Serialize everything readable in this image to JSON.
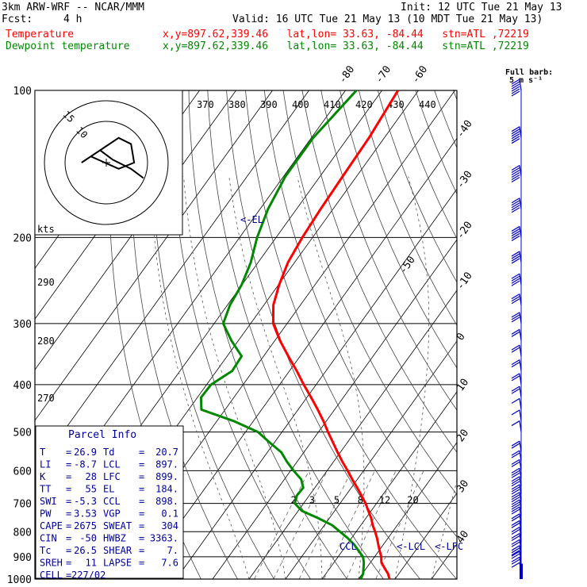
{
  "header": {
    "model": "3km ARW-WRF -- NCAR/MMM",
    "init": "Init: 12 UTC Tue 21 May 13",
    "fcst_label": "Fcst:",
    "fcst_hours": "4 h",
    "valid": "Valid: 16 UTC Tue 21 May 13 (10 MDT Tue 21 May 13)",
    "temp_legend": "Temperature",
    "dewp_legend": "Dewpoint temperature",
    "temp_info": "x,y=897.62,339.46   lat,lon= 33.63, -84.44   stn=ATL ,72219",
    "dewp_info": "x,y=897.62,339.46   lat,lon= 33.63, -84.44   stn=ATL ,72219"
  },
  "colors": {
    "temperature": "#ff0000",
    "dewpoint": "#008800",
    "parcel": "#000099",
    "wind": "#0000cc",
    "grid": "#000000",
    "bg": "#ffffff"
  },
  "chart_data": {
    "type": "line",
    "subtype": "skew-t log-p",
    "yaxis_label_ticks": [
      "100",
      "200",
      "300",
      "400",
      "500",
      "600",
      "700",
      "800",
      "900",
      "1000"
    ],
    "y_ticks": [
      100,
      200,
      300,
      400,
      500,
      600,
      700,
      800,
      900,
      1000
    ],
    "isotherm_labels": [
      "-80",
      "-70",
      "-60",
      "-50",
      "-40",
      "-30",
      "-20",
      "-10",
      "0",
      "10",
      "20",
      "30",
      "40"
    ],
    "isotherm_values": [
      -80,
      -70,
      -60,
      -50,
      -40,
      -30,
      -20,
      -10,
      0,
      10,
      20,
      30,
      40
    ],
    "theta_labels": [
      "370",
      "380",
      "390",
      "400",
      "410",
      "420",
      "430",
      "440"
    ],
    "theta_label_values": [
      370,
      380,
      390,
      400,
      410,
      420,
      430,
      440
    ],
    "dry_adiabat_labels": [
      "290",
      "280",
      "270"
    ],
    "dry_adiabat_values": [
      290,
      280,
      270
    ],
    "mixing_ratio_labels": [
      "2",
      "3",
      "5",
      "8",
      "12",
      "20"
    ],
    "mixing_ratio_values": [
      2,
      3,
      5,
      8,
      12,
      20
    ],
    "series": [
      {
        "name": "Temperature",
        "pressure": [
          1000,
          975,
          950,
          925,
          900,
          875,
          850,
          825,
          800,
          775,
          750,
          725,
          700,
          675,
          650,
          625,
          600,
          575,
          550,
          525,
          500,
          475,
          450,
          425,
          400,
          375,
          350,
          325,
          300,
          275,
          250,
          225,
          200,
          175,
          150,
          125,
          100
        ],
        "values": [
          28.5,
          27.0,
          25.0,
          23.0,
          21.8,
          20.2,
          18.6,
          17.0,
          15.2,
          13.2,
          11.4,
          9.2,
          7.0,
          4.4,
          1.6,
          -1.4,
          -4.4,
          -7.6,
          -10.8,
          -14.0,
          -17.4,
          -20.8,
          -24.6,
          -28.8,
          -33.4,
          -38.0,
          -43.2,
          -48.6,
          -53.8,
          -57.4,
          -59.8,
          -61.8,
          -62.8,
          -63.4,
          -63.8,
          -64.2,
          -65.6
        ]
      },
      {
        "name": "Dewpoint temperature",
        "pressure": [
          1000,
          975,
          950,
          925,
          900,
          875,
          850,
          825,
          800,
          775,
          750,
          725,
          700,
          675,
          650,
          625,
          600,
          575,
          550,
          525,
          500,
          475,
          450,
          425,
          400,
          375,
          350,
          325,
          300,
          275,
          250,
          225,
          200,
          175,
          150,
          125,
          100
        ],
        "values": [
          20.6,
          20.2,
          19.2,
          18.2,
          16.8,
          14.4,
          12.0,
          9.0,
          5.6,
          2.0,
          -3.2,
          -9.0,
          -12.4,
          -13.4,
          -13.2,
          -15.4,
          -19.2,
          -22.8,
          -26.2,
          -31.4,
          -36.6,
          -45.4,
          -56.5,
          -59.0,
          -58.8,
          -55.7,
          -56.0,
          -61.9,
          -67.5,
          -69.3,
          -70.1,
          -72.0,
          -75.2,
          -77.8,
          -79.5,
          -79.5,
          -77.0
        ]
      }
    ],
    "annotations": [
      "<-EL",
      "CCL",
      "<-LCL",
      "<-LFC"
    ],
    "wind_scale_label": "Full barb:",
    "wind_scale_value": "5 m s⁻¹",
    "wind_barbs": {
      "pressure": [
        975,
        950,
        925,
        900,
        875,
        850,
        825,
        800,
        775,
        750,
        725,
        700,
        675,
        650,
        625,
        600,
        575,
        550,
        500,
        475,
        450,
        425,
        400,
        375,
        350,
        325,
        300,
        275,
        250,
        225,
        200,
        175,
        150,
        125,
        100
      ],
      "speed_ms": [
        7,
        9,
        11,
        13,
        12,
        11,
        10,
        10,
        11,
        12,
        13,
        14,
        15,
        14,
        13,
        12,
        10,
        8,
        6,
        6,
        7,
        8,
        9,
        10,
        10,
        12,
        14,
        17,
        20,
        22,
        24,
        26,
        28,
        30,
        32
      ]
    },
    "hodograph": {
      "label": "kts",
      "ring_labels": [
        "15",
        "10"
      ],
      "ring_values": [
        15,
        10
      ],
      "points_kts": [
        [
          -8,
          0
        ],
        [
          -2,
          4
        ],
        [
          4,
          8
        ],
        [
          8,
          6
        ],
        [
          9,
          0
        ],
        [
          4,
          -2
        ],
        [
          -5,
          2
        ],
        [
          -2,
          4
        ],
        [
          2,
          1
        ],
        [
          8,
          -2
        ],
        [
          12,
          -5
        ]
      ]
    },
    "parcel_info": {
      "title": "Parcel Info",
      "rows": [
        [
          "T",
          "26.9",
          "Td",
          "20.7"
        ],
        [
          "LI",
          "-8.7",
          "LCL",
          "897."
        ],
        [
          "K",
          "28",
          "LFC",
          "899."
        ],
        [
          "TT",
          "55",
          "EL",
          "184."
        ],
        [
          "SWI",
          "-5.3",
          "CCL",
          "898."
        ],
        [
          "PW",
          "3.53",
          "VGP",
          "0.1"
        ],
        [
          "CAPE",
          "2675",
          "SWEAT",
          "304"
        ],
        [
          "CIN",
          "-50",
          "HWBZ",
          "3363."
        ],
        [
          "Tc",
          "26.5",
          "SHEAR",
          "7."
        ],
        [
          "SREH",
          "11",
          "LAPSE",
          "7.6"
        ],
        [
          "CELL",
          "227/02",
          "",
          ""
        ]
      ]
    }
  }
}
